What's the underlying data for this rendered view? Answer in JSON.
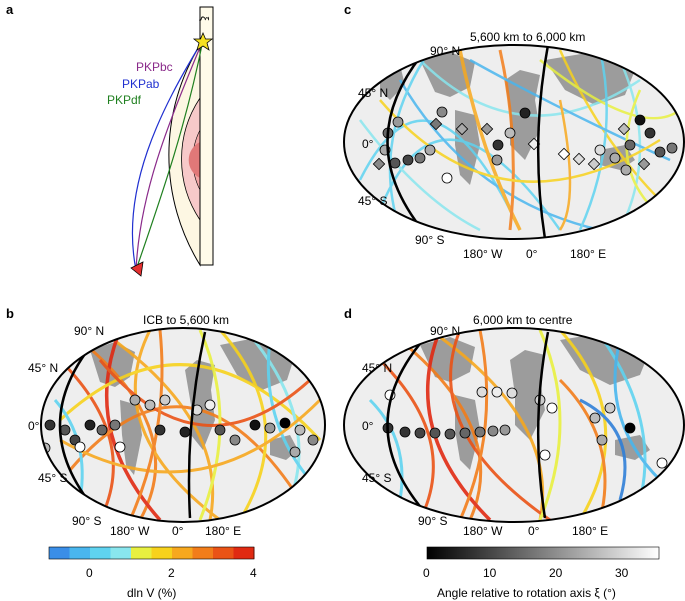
{
  "panels": {
    "a": {
      "label": "a",
      "xi_label": "ξ",
      "phase_labels": [
        {
          "text": "PKPbc",
          "color": "#8a2a8a"
        },
        {
          "text": "PKPab",
          "color": "#2030d0"
        },
        {
          "text": "PKPdf",
          "color": "#208020"
        }
      ]
    },
    "b": {
      "label": "b",
      "title": "ICB to 5,600 km"
    },
    "c": {
      "label": "c",
      "title": "5,600 km to 6,000 km"
    },
    "d": {
      "label": "d",
      "title": "6,000 km to centre"
    }
  },
  "map_labels": {
    "lat_90n": "90° N",
    "lat_45n": "45° N",
    "lat_0": "0°",
    "lat_45s": "45° S",
    "lat_90s": "90° S",
    "lon_180w": "180° W",
    "lon_0": "0°",
    "lon_180e": "180° E"
  },
  "colorbar_dlnv": {
    "title": "dln V (%)",
    "ticks": [
      "0",
      "2",
      "4"
    ],
    "range": [
      -1,
      4
    ],
    "colors": [
      "#3a8ee8",
      "#49b6ee",
      "#5fd3f0",
      "#89e6ee",
      "#e8f040",
      "#f7d21c",
      "#f7a81e",
      "#f27d1a",
      "#ea5316",
      "#e02a12"
    ]
  },
  "colorbar_xi": {
    "title": "Angle relative to rotation axis ξ (°)",
    "ticks": [
      "0",
      "10",
      "20",
      "30"
    ],
    "range": [
      0,
      35
    ],
    "gradient": [
      "#000000",
      "#ffffff"
    ]
  },
  "colors": {
    "land": "#9c9c9c",
    "ocean": "#eeeeee",
    "outer_core": "#fdf7e3",
    "inner_core": "#f7c9c9",
    "innermost_core": "#e07878",
    "station": "#e53030",
    "event": "#f5e020"
  }
}
